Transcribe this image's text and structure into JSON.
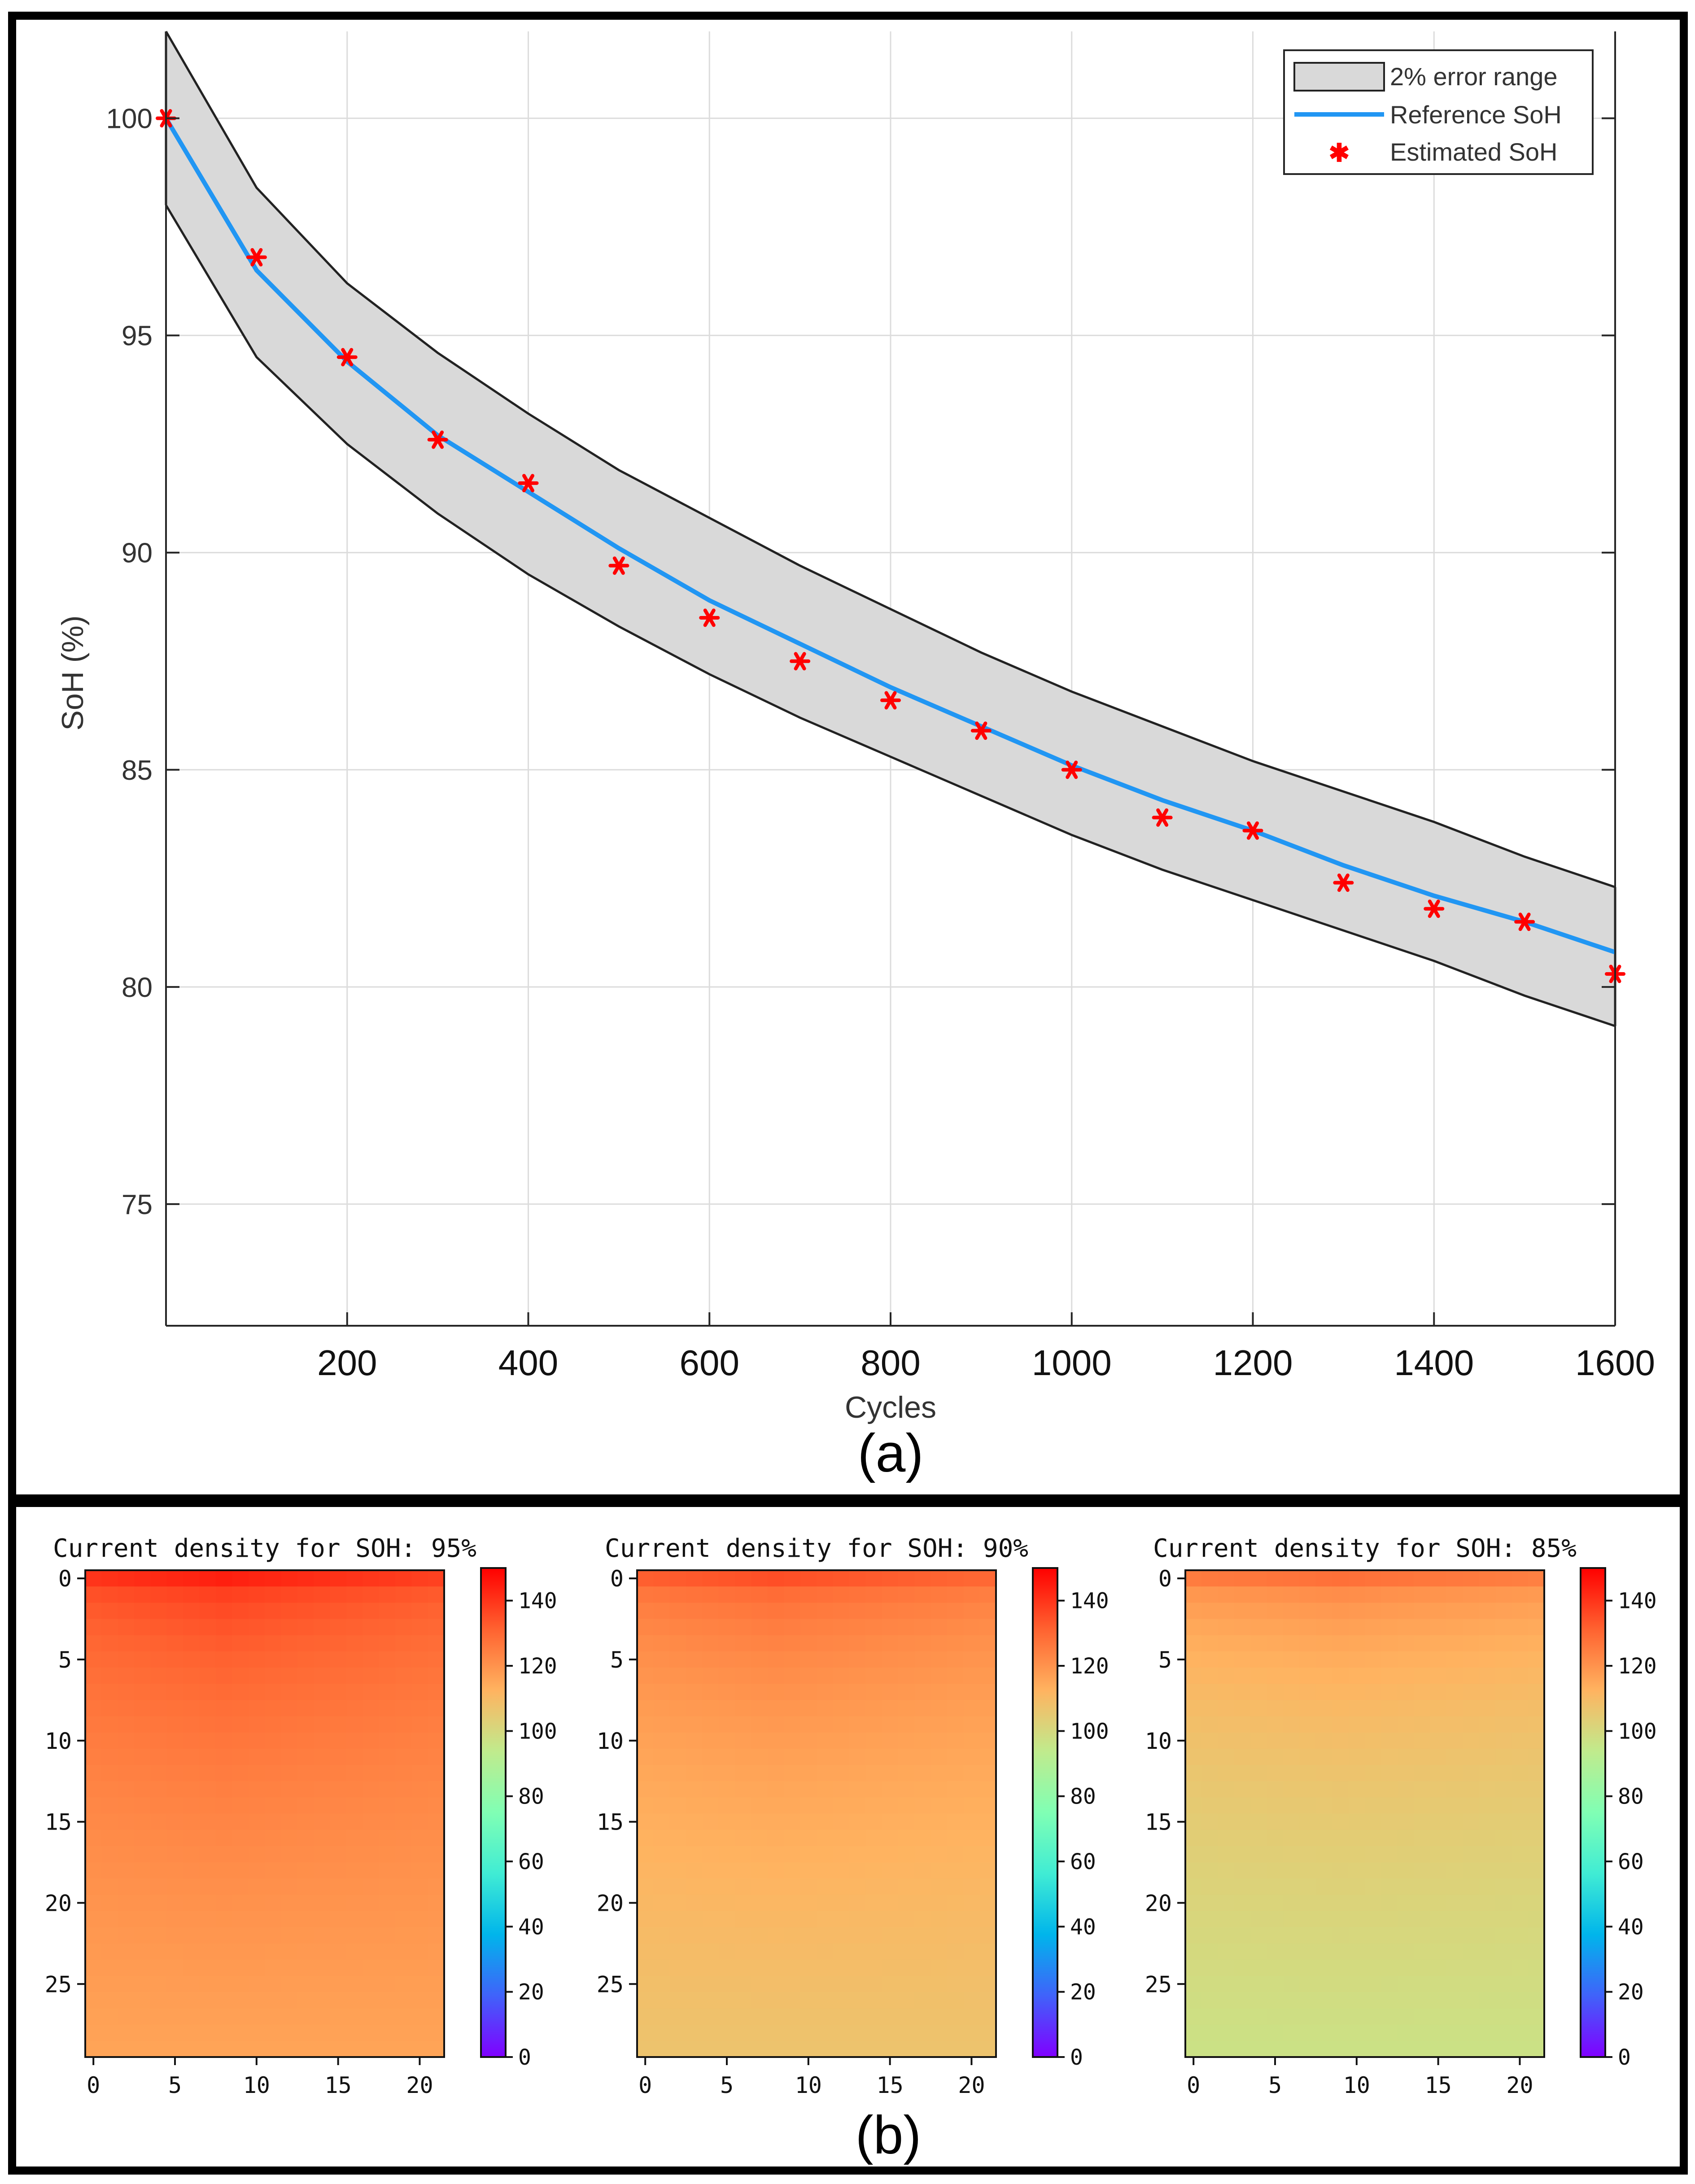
{
  "chart_data": [
    {
      "panel": "(a)",
      "type": "line",
      "title": "",
      "xlabel": "Cycles",
      "ylabel": "SoH (%)",
      "xlim": [
        0,
        1600
      ],
      "ylim": [
        72.2,
        102
      ],
      "xticks": [
        200,
        400,
        600,
        800,
        1000,
        1200,
        1400,
        1600
      ],
      "yticks": [
        75,
        80,
        85,
        90,
        95,
        100
      ],
      "grid": true,
      "legend_position": "top-right",
      "legend": [
        "2% error range",
        "Reference SoH",
        "Estimated SoH"
      ],
      "x": [
        0,
        100,
        200,
        300,
        400,
        500,
        600,
        700,
        800,
        900,
        1000,
        1100,
        1200,
        1300,
        1400,
        1500,
        1600
      ],
      "series": [
        {
          "name": "Reference SoH",
          "style": "line",
          "color": "#2196f3",
          "values": [
            100.0,
            96.5,
            94.4,
            92.7,
            91.4,
            90.1,
            88.9,
            87.9,
            86.9,
            86.0,
            85.1,
            84.3,
            83.6,
            82.8,
            82.1,
            81.5,
            80.8
          ]
        },
        {
          "name": "Estimated SoH",
          "style": "marker",
          "color": "#ff0000",
          "values": [
            100.0,
            96.8,
            94.5,
            92.6,
            91.6,
            89.7,
            88.5,
            87.5,
            86.6,
            85.9,
            85.0,
            83.9,
            83.6,
            82.4,
            81.8,
            81.5,
            80.3
          ]
        },
        {
          "name": "2% error range upper",
          "style": "band-upper",
          "color": "#d9d9d9",
          "values": [
            102.0,
            98.4,
            96.2,
            94.6,
            93.2,
            91.9,
            90.8,
            89.7,
            88.7,
            87.7,
            86.8,
            86.0,
            85.2,
            84.5,
            83.8,
            83.0,
            82.3
          ]
        },
        {
          "name": "2% error range lower",
          "style": "band-lower",
          "color": "#d9d9d9",
          "values": [
            98.0,
            94.5,
            92.5,
            90.9,
            89.5,
            88.3,
            87.2,
            86.2,
            85.3,
            84.4,
            83.5,
            82.7,
            82.0,
            81.3,
            80.6,
            79.8,
            79.1
          ]
        }
      ]
    },
    {
      "panel": "(b)",
      "type": "heatmap",
      "colorbar": {
        "min": 0,
        "max": 150,
        "ticks": [
          0,
          20,
          40,
          60,
          80,
          100,
          120,
          140
        ]
      },
      "xticks": [
        0,
        5,
        10,
        15,
        20
      ],
      "yticks": [
        0,
        5,
        10,
        15,
        20,
        25
      ],
      "grid_size": {
        "cols": 22,
        "rows": 30
      },
      "maps": [
        {
          "title": "Current density for SOH: 95%",
          "peak": 144,
          "bottom": 116,
          "peak_col": 8,
          "right_drop": 5
        },
        {
          "title": "Current density for SOH: 90%",
          "peak": 135,
          "bottom": 107,
          "peak_col": 8,
          "right_drop": 4
        },
        {
          "title": "Current density for SOH: 85%",
          "peak": 128,
          "bottom": 97,
          "peak_col": 9,
          "right_drop": 3
        }
      ]
    }
  ],
  "panel_labels": {
    "a": "(a)",
    "b": "(b)"
  }
}
